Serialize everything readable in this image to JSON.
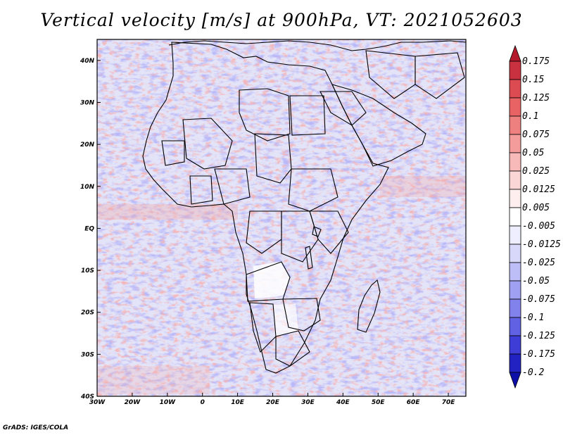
{
  "title": "Vertical velocity [m/s] at 900hPa, VT: 2021052603",
  "footer": "GrADS: IGES/COLA",
  "map": {
    "lon_range": [
      -30,
      75
    ],
    "lat_range": [
      -40,
      45
    ],
    "lat_ticks": [
      {
        "value": 40,
        "label": "40N"
      },
      {
        "value": 30,
        "label": "30N"
      },
      {
        "value": 20,
        "label": "20N"
      },
      {
        "value": 10,
        "label": "10N"
      },
      {
        "value": 0,
        "label": "EQ"
      },
      {
        "value": -10,
        "label": "10S"
      },
      {
        "value": -20,
        "label": "20S"
      },
      {
        "value": -30,
        "label": "30S"
      },
      {
        "value": -40,
        "label": "40S"
      }
    ],
    "lon_ticks": [
      {
        "value": -30,
        "label": "30W"
      },
      {
        "value": -20,
        "label": "20W"
      },
      {
        "value": -10,
        "label": "10W"
      },
      {
        "value": 0,
        "label": "0"
      },
      {
        "value": 10,
        "label": "10E"
      },
      {
        "value": 20,
        "label": "20E"
      },
      {
        "value": 30,
        "label": "30E"
      },
      {
        "value": 40,
        "label": "40E"
      },
      {
        "value": 50,
        "label": "50E"
      },
      {
        "value": 60,
        "label": "60E"
      },
      {
        "value": 70,
        "label": "70E"
      }
    ]
  },
  "colorbar": {
    "levels": [
      "0.175",
      "0.15",
      "0.125",
      "0.1",
      "0.075",
      "0.05",
      "0.025",
      "0.0125",
      "0.005",
      "-0.005",
      "-0.0125",
      "-0.025",
      "-0.05",
      "-0.075",
      "-0.1",
      "-0.125",
      "-0.175",
      "-0.2"
    ],
    "colors": [
      "#b51a2c",
      "#c93040",
      "#dc4a52",
      "#e86464",
      "#ef8080",
      "#f49c9c",
      "#f8b9b9",
      "#fbd6d6",
      "#feeeee",
      "#ffffff",
      "#eeeefe",
      "#d8d8fb",
      "#bdbdf7",
      "#a0a0f2",
      "#8282ec",
      "#6161e3",
      "#3e3ed6",
      "#2222c2",
      "#0e0ea8"
    ]
  }
}
